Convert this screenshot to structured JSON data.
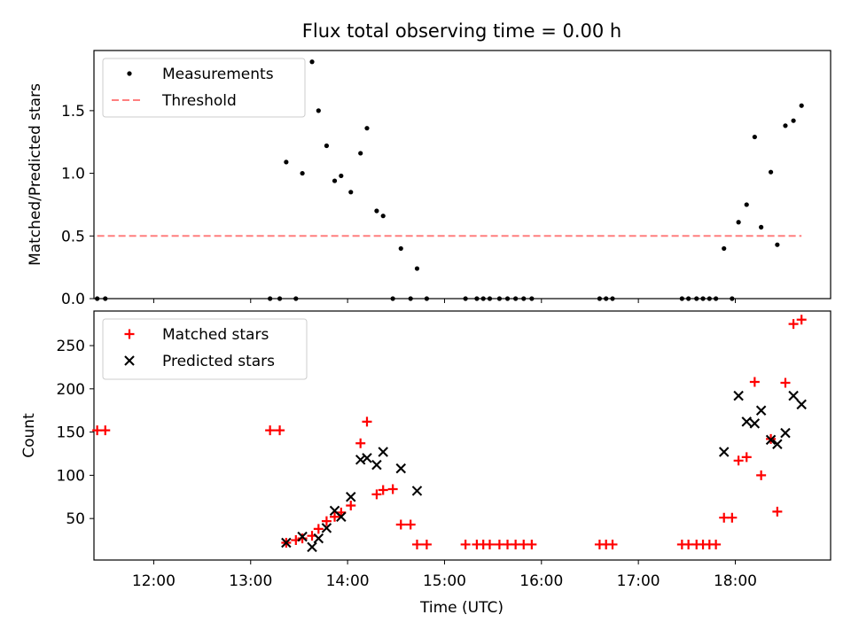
{
  "chart_data": {
    "title": "Flux total observing time = 0.00 h",
    "xlabel": "Time (UTC)",
    "x_ticks": [
      "12:00",
      "13:00",
      "14:00",
      "15:00",
      "16:00",
      "17:00",
      "18:00"
    ],
    "xlim": [
      "11:23",
      "18:59"
    ],
    "panels": [
      {
        "type": "scatter",
        "ylabel": "Matched/Predicted stars",
        "ylim": [
          0,
          1.98
        ],
        "y_ticks": [
          "0.0",
          "0.5",
          "1.0",
          "1.5"
        ],
        "legend_position": "top-left",
        "series": [
          {
            "name": "Measurements",
            "marker": "dot",
            "color": "#000000",
            "points": [
              [
                "11:25",
                0
              ],
              [
                "11:30",
                0
              ],
              [
                "13:12",
                0
              ],
              [
                "13:18",
                0
              ],
              [
                "13:22",
                1.09
              ],
              [
                "13:28",
                0
              ],
              [
                "13:32",
                1.0
              ],
              [
                "13:38",
                1.89
              ],
              [
                "13:42",
                1.5
              ],
              [
                "13:47",
                1.22
              ],
              [
                "13:52",
                0.94
              ],
              [
                "13:56",
                0.98
              ],
              [
                "14:02",
                0.85
              ],
              [
                "14:08",
                1.16
              ],
              [
                "14:12",
                1.36
              ],
              [
                "14:18",
                0.7
              ],
              [
                "14:22",
                0.66
              ],
              [
                "14:28",
                0
              ],
              [
                "14:33",
                0.4
              ],
              [
                "14:39",
                0
              ],
              [
                "14:43",
                0.24
              ],
              [
                "14:49",
                0
              ],
              [
                "15:13",
                0
              ],
              [
                "15:20",
                0
              ],
              [
                "15:24",
                0
              ],
              [
                "15:28",
                0
              ],
              [
                "15:34",
                0
              ],
              [
                "15:39",
                0
              ],
              [
                "15:44",
                0
              ],
              [
                "15:49",
                0
              ],
              [
                "15:54",
                0
              ],
              [
                "16:36",
                0
              ],
              [
                "16:40",
                0
              ],
              [
                "16:44",
                0
              ],
              [
                "17:27",
                0
              ],
              [
                "17:31",
                0
              ],
              [
                "17:36",
                0
              ],
              [
                "17:40",
                0
              ],
              [
                "17:44",
                0
              ],
              [
                "17:48",
                0
              ],
              [
                "17:53",
                0.4
              ],
              [
                "17:58",
                0
              ],
              [
                "18:02",
                0.61
              ],
              [
                "18:07",
                0.75
              ],
              [
                "18:12",
                1.29
              ],
              [
                "18:16",
                0.57
              ],
              [
                "18:22",
                1.01
              ],
              [
                "18:26",
                0.43
              ],
              [
                "18:31",
                1.38
              ],
              [
                "18:36",
                1.42
              ],
              [
                "18:41",
                1.54
              ]
            ]
          },
          {
            "name": "Threshold",
            "marker": "dashed-line",
            "color": "#ff7f7f",
            "points": [
              [
                "11:25",
                0.5
              ],
              [
                "18:41",
                0.5
              ]
            ]
          }
        ]
      },
      {
        "type": "scatter",
        "ylabel": "Count",
        "ylim": [
          2,
          290
        ],
        "y_ticks": [
          "50",
          "100",
          "150",
          "200",
          "250"
        ],
        "legend_position": "top-left",
        "series": [
          {
            "name": "Matched stars",
            "marker": "plus",
            "color": "#ff0000",
            "points": [
              [
                "11:25",
                152
              ],
              [
                "11:30",
                152
              ],
              [
                "13:12",
                152
              ],
              [
                "13:18",
                152
              ],
              [
                "13:22",
                22
              ],
              [
                "13:28",
                25
              ],
              [
                "13:32",
                27
              ],
              [
                "13:38",
                30
              ],
              [
                "13:42",
                38
              ],
              [
                "13:47",
                47
              ],
              [
                "13:52",
                52
              ],
              [
                "13:56",
                57
              ],
              [
                "14:02",
                65
              ],
              [
                "14:08",
                137
              ],
              [
                "14:12",
                162
              ],
              [
                "14:18",
                78
              ],
              [
                "14:22",
                83
              ],
              [
                "14:28",
                84
              ],
              [
                "14:33",
                43
              ],
              [
                "14:39",
                43
              ],
              [
                "14:43",
                20
              ],
              [
                "14:49",
                20
              ],
              [
                "15:13",
                20
              ],
              [
                "15:20",
                20
              ],
              [
                "15:24",
                20
              ],
              [
                "15:28",
                20
              ],
              [
                "15:34",
                20
              ],
              [
                "15:39",
                20
              ],
              [
                "15:44",
                20
              ],
              [
                "15:49",
                20
              ],
              [
                "15:54",
                20
              ],
              [
                "16:36",
                20
              ],
              [
                "16:40",
                20
              ],
              [
                "16:44",
                20
              ],
              [
                "17:27",
                20
              ],
              [
                "17:31",
                20
              ],
              [
                "17:36",
                20
              ],
              [
                "17:40",
                20
              ],
              [
                "17:44",
                20
              ],
              [
                "17:48",
                20
              ],
              [
                "17:53",
                51
              ],
              [
                "17:58",
                51
              ],
              [
                "18:02",
                117
              ],
              [
                "18:07",
                121
              ],
              [
                "18:12",
                208
              ],
              [
                "18:16",
                100
              ],
              [
                "18:22",
                142
              ],
              [
                "18:26",
                58
              ],
              [
                "18:31",
                207
              ],
              [
                "18:36",
                275
              ],
              [
                "18:41",
                280
              ]
            ]
          },
          {
            "name": "Predicted stars",
            "marker": "x",
            "color": "#000000",
            "points": [
              [
                "13:22",
                22
              ],
              [
                "13:32",
                29
              ],
              [
                "13:38",
                17
              ],
              [
                "13:42",
                27
              ],
              [
                "13:47",
                39
              ],
              [
                "13:52",
                59
              ],
              [
                "13:56",
                52
              ],
              [
                "14:02",
                75
              ],
              [
                "14:08",
                118
              ],
              [
                "14:12",
                120
              ],
              [
                "14:18",
                112
              ],
              [
                "14:22",
                127
              ],
              [
                "14:33",
                108
              ],
              [
                "14:43",
                82
              ],
              [
                "17:53",
                127
              ],
              [
                "18:02",
                192
              ],
              [
                "18:07",
                162
              ],
              [
                "18:12",
                160
              ],
              [
                "18:16",
                175
              ],
              [
                "18:22",
                141
              ],
              [
                "18:26",
                136
              ],
              [
                "18:31",
                149
              ],
              [
                "18:36",
                192
              ],
              [
                "18:41",
                182
              ]
            ]
          }
        ]
      }
    ]
  }
}
